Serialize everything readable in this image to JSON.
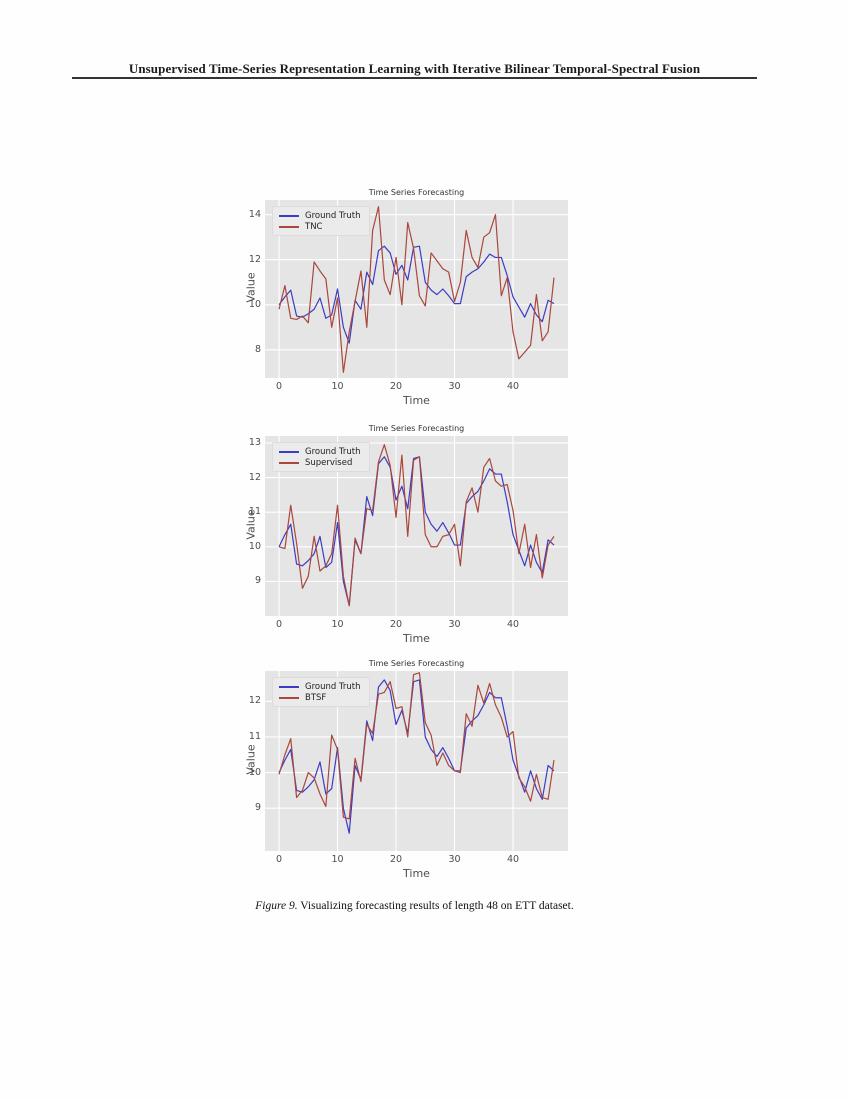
{
  "page": {
    "header": "Unsupervised Time-Series Representation Learning with Iterative Bilinear Temporal-Spectral Fusion",
    "caption_label": "Figure 9.",
    "caption_text": " Visualizing forecasting results of length 48 on ETT dataset."
  },
  "colors": {
    "ground_truth": "#3c3cc4",
    "prediction": "#a9473c",
    "plot_background": "#e5e5e6",
    "gridline": "#ffffff"
  },
  "chart_data": [
    {
      "type": "line",
      "title": "Time Series Forecasting",
      "xlabel": "Time",
      "ylabel": "Value",
      "xlim": [
        -2.4,
        49.4
      ],
      "ylim": [
        6.75,
        14.65
      ],
      "xticks": [
        0,
        10,
        20,
        30,
        40
      ],
      "yticks": [
        8,
        10,
        12,
        14
      ],
      "grid": true,
      "legend_position": "upper left",
      "x_start": 0,
      "series": [
        {
          "name": "Ground Truth",
          "color": "#3c3cc4",
          "values": [
            10.0,
            10.35,
            10.65,
            9.5,
            9.45,
            9.6,
            9.8,
            10.3,
            9.4,
            9.55,
            10.7,
            9.0,
            8.3,
            10.2,
            9.8,
            11.45,
            10.9,
            12.4,
            12.6,
            12.3,
            11.35,
            11.75,
            11.1,
            12.55,
            12.6,
            11.0,
            10.65,
            10.45,
            10.7,
            10.4,
            10.05,
            10.05,
            11.25,
            11.45,
            11.6,
            11.9,
            12.25,
            12.1,
            12.1,
            11.3,
            10.35,
            9.9,
            9.45,
            10.05,
            9.55,
            9.25,
            10.2,
            10.05
          ]
        },
        {
          "name": "TNC",
          "color": "#a9473c",
          "values": [
            9.8,
            10.85,
            9.4,
            9.35,
            9.5,
            9.2,
            11.9,
            11.5,
            11.15,
            9.0,
            10.3,
            7.0,
            8.8,
            10.15,
            11.5,
            9.0,
            13.3,
            14.35,
            11.1,
            10.45,
            12.1,
            10.0,
            13.65,
            12.5,
            10.4,
            9.95,
            12.3,
            11.95,
            11.6,
            11.45,
            10.15,
            11.0,
            13.3,
            12.1,
            11.65,
            13.0,
            13.2,
            14.0,
            10.4,
            11.2,
            8.8,
            7.6,
            7.9,
            8.2,
            10.45,
            8.4,
            8.8,
            11.2
          ]
        }
      ]
    },
    {
      "type": "line",
      "title": "Time Series Forecasting",
      "xlabel": "Time",
      "ylabel": "Value",
      "xlim": [
        -2.4,
        49.4
      ],
      "ylim": [
        8.0,
        13.2
      ],
      "xticks": [
        0,
        10,
        20,
        30,
        40
      ],
      "yticks": [
        9,
        10,
        11,
        12,
        13
      ],
      "grid": true,
      "legend_position": "upper left",
      "x_start": 0,
      "series": [
        {
          "name": "Ground Truth",
          "color": "#3c3cc4",
          "values": [
            10.0,
            10.35,
            10.65,
            9.5,
            9.45,
            9.6,
            9.8,
            10.3,
            9.4,
            9.55,
            10.7,
            9.0,
            8.3,
            10.2,
            9.8,
            11.45,
            10.9,
            12.4,
            12.6,
            12.3,
            11.35,
            11.75,
            11.1,
            12.55,
            12.6,
            11.0,
            10.65,
            10.45,
            10.7,
            10.4,
            10.05,
            10.05,
            11.25,
            11.45,
            11.6,
            11.9,
            12.25,
            12.1,
            12.1,
            11.3,
            10.35,
            9.9,
            9.45,
            10.05,
            9.55,
            9.25,
            10.2,
            10.05
          ]
        },
        {
          "name": "Supervised",
          "color": "#a9473c",
          "values": [
            10.0,
            9.95,
            11.2,
            10.1,
            8.8,
            9.15,
            10.3,
            9.3,
            9.45,
            9.8,
            11.2,
            9.15,
            8.3,
            10.25,
            9.8,
            11.1,
            11.05,
            12.45,
            12.95,
            12.35,
            10.85,
            12.65,
            10.3,
            12.5,
            12.6,
            10.35,
            10.0,
            10.0,
            10.3,
            10.35,
            10.65,
            9.45,
            11.3,
            11.7,
            11.0,
            12.3,
            12.55,
            11.9,
            11.75,
            11.8,
            11.05,
            9.8,
            10.65,
            9.4,
            10.35,
            9.1,
            10.05,
            10.3
          ]
        }
      ]
    },
    {
      "type": "line",
      "title": "Time Series Forecasting",
      "xlabel": "Time",
      "ylabel": "Value",
      "xlim": [
        -2.4,
        49.4
      ],
      "ylim": [
        7.8,
        12.85
      ],
      "xticks": [
        0,
        10,
        20,
        30,
        40
      ],
      "yticks": [
        9,
        10,
        11,
        12
      ],
      "grid": true,
      "legend_position": "upper left",
      "x_start": 0,
      "series": [
        {
          "name": "Ground Truth",
          "color": "#3c3cc4",
          "values": [
            10.0,
            10.35,
            10.65,
            9.5,
            9.45,
            9.6,
            9.8,
            10.3,
            9.4,
            9.55,
            10.7,
            9.0,
            8.3,
            10.2,
            9.8,
            11.45,
            10.9,
            12.4,
            12.6,
            12.3,
            11.35,
            11.75,
            11.1,
            12.55,
            12.6,
            11.0,
            10.65,
            10.45,
            10.7,
            10.4,
            10.05,
            10.05,
            11.25,
            11.45,
            11.6,
            11.9,
            12.25,
            12.1,
            12.1,
            11.3,
            10.35,
            9.9,
            9.45,
            10.05,
            9.55,
            9.25,
            10.2,
            10.05
          ]
        },
        {
          "name": "BTSF",
          "color": "#a9473c",
          "values": [
            9.95,
            10.5,
            10.95,
            9.3,
            9.5,
            10.0,
            9.85,
            9.4,
            9.05,
            11.05,
            10.65,
            8.75,
            8.7,
            10.4,
            9.75,
            11.35,
            11.1,
            12.2,
            12.25,
            12.55,
            11.8,
            11.85,
            11.0,
            12.75,
            12.8,
            11.4,
            11.05,
            10.2,
            10.55,
            10.2,
            10.05,
            10.0,
            11.65,
            11.3,
            12.45,
            11.95,
            12.5,
            11.9,
            11.55,
            11.0,
            11.15,
            9.85,
            9.6,
            9.2,
            9.95,
            9.3,
            9.25,
            10.35
          ]
        }
      ]
    }
  ]
}
